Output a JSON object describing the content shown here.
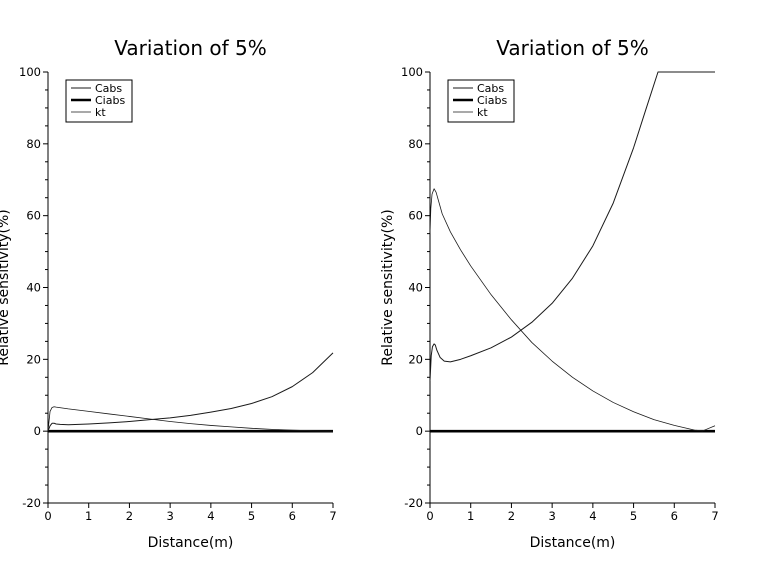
{
  "chart_data": [
    {
      "type": "line",
      "title": "Variation of 5%",
      "xlabel": "Distance(m)",
      "ylabel": "Relative sensitivity(%)",
      "xlim": [
        0,
        7
      ],
      "ylim": [
        -20,
        100
      ],
      "xticks": [
        0,
        1,
        2,
        3,
        4,
        5,
        6,
        7
      ],
      "yticks": [
        -20,
        0,
        20,
        40,
        60,
        80,
        100
      ],
      "legend_position": "top-left",
      "series": [
        {
          "name": "Cabs",
          "x": [
            0,
            0.05,
            0.1,
            0.15,
            0.2,
            0.3,
            0.5,
            1,
            1.5,
            2,
            2.5,
            3,
            3.5,
            4,
            4.5,
            5,
            5.5,
            6,
            6.5,
            7
          ],
          "y": [
            0,
            1.5,
            2.2,
            2.2,
            2.0,
            1.9,
            1.8,
            2.0,
            2.3,
            2.7,
            3.2,
            3.7,
            4.4,
            5.3,
            6.3,
            7.7,
            9.6,
            12.4,
            16.3,
            21.8
          ]
        },
        {
          "name": "Ciabs",
          "x": [
            0,
            1,
            2,
            3,
            4,
            5,
            6,
            7
          ],
          "y": [
            0,
            0,
            0,
            0,
            0,
            0,
            0,
            0
          ]
        },
        {
          "name": "kt",
          "x": [
            0,
            0.05,
            0.1,
            0.15,
            0.2,
            0.5,
            1,
            1.5,
            2,
            2.5,
            3,
            3.5,
            4,
            4.5,
            5,
            5.5,
            6,
            6.5,
            7
          ],
          "y": [
            0,
            5.5,
            6.6,
            6.8,
            6.7,
            6.2,
            5.5,
            4.8,
            4.1,
            3.4,
            2.7,
            2.1,
            1.6,
            1.2,
            0.8,
            0.5,
            0.3,
            0.1,
            0.0
          ]
        }
      ]
    },
    {
      "type": "line",
      "title": "Variation of 5%",
      "xlabel": "Distance(m)",
      "ylabel": "Relative sensitivity(%)",
      "xlim": [
        0,
        7
      ],
      "ylim": [
        -20,
        100
      ],
      "xticks": [
        0,
        1,
        2,
        3,
        4,
        5,
        6,
        7
      ],
      "yticks": [
        -20,
        0,
        20,
        40,
        60,
        80,
        100
      ],
      "legend_position": "top-left",
      "series": [
        {
          "name": "Cabs",
          "x": [
            0,
            0.03,
            0.06,
            0.1,
            0.13,
            0.17,
            0.25,
            0.35,
            0.5,
            0.75,
            1,
            1.5,
            2,
            2.5,
            3,
            3.5,
            4,
            4.5,
            5,
            5.3,
            5.6,
            6,
            6.5,
            7
          ],
          "y": [
            14,
            21,
            23.5,
            24.3,
            24,
            22.5,
            20.5,
            19.5,
            19.3,
            20,
            21,
            23.2,
            26.2,
            30.3,
            35.6,
            42.6,
            51.6,
            63.5,
            78.9,
            89.5,
            100,
            100,
            100,
            100
          ]
        },
        {
          "name": "Ciabs",
          "x": [
            0,
            1,
            2,
            3,
            4,
            5,
            6,
            7
          ],
          "y": [
            0,
            0,
            0,
            0,
            0,
            0,
            0,
            0
          ]
        },
        {
          "name": "kt",
          "x": [
            0,
            0.02,
            0.05,
            0.1,
            0.15,
            0.2,
            0.3,
            0.5,
            0.75,
            1,
            1.5,
            2,
            2.5,
            3,
            3.5,
            4,
            4.5,
            5,
            5.5,
            6,
            6.5,
            6.7,
            7
          ],
          "y": [
            55,
            62,
            66,
            67.5,
            66.5,
            64.5,
            60.5,
            55.5,
            50.5,
            46,
            38,
            31,
            24.7,
            19.5,
            15,
            11.2,
            8,
            5.4,
            3.2,
            1.6,
            0.3,
            0.1,
            1.5
          ]
        }
      ]
    }
  ],
  "styles": {
    "cabs_color": "#1a1a1a",
    "ciabs_color": "#000000",
    "kt_color": "#1a1a1a",
    "axis_color": "#000000"
  }
}
